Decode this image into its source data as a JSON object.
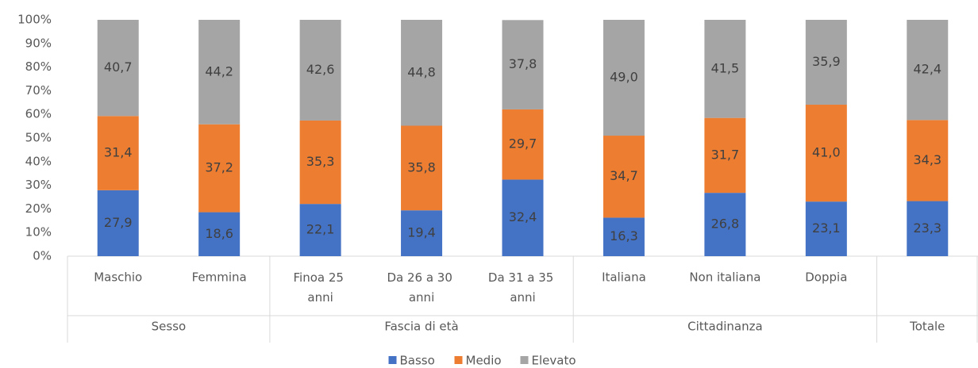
{
  "chart_data": {
    "type": "stacked_bar_100",
    "groups": [
      {
        "name": "Sesso",
        "categories": [
          "Maschio",
          "Femmina"
        ]
      },
      {
        "name": "Fascia di età",
        "categories": [
          "Finoa 25 anni",
          "Da 26 a 30 anni",
          "Da 31 a 35 anni"
        ]
      },
      {
        "name": "Cittadinanza",
        "categories": [
          "Italiana",
          "Non italiana",
          "Doppia"
        ]
      },
      {
        "name": "Totale",
        "categories": [
          null
        ]
      }
    ],
    "series": [
      {
        "name": "Basso",
        "color": "#4472c4",
        "values": [
          27.9,
          18.6,
          22.1,
          19.4,
          32.4,
          16.3,
          26.8,
          23.1,
          23.3
        ],
        "value_labels": [
          "27,9",
          "18,6",
          "22,1",
          "19,4",
          "32,4",
          "16,3",
          "26,8",
          "23,1",
          "23,3"
        ]
      },
      {
        "name": "Medio",
        "color": "#ed7d31",
        "values": [
          31.4,
          37.2,
          35.3,
          35.8,
          29.7,
          34.7,
          31.7,
          41.0,
          34.3
        ],
        "value_labels": [
          "31,4",
          "37,2",
          "35,3",
          "35,8",
          "29,7",
          "34,7",
          "31,7",
          "41,0",
          "34,3"
        ]
      },
      {
        "name": "Elevato",
        "color": "#a5a5a5",
        "values": [
          40.7,
          44.2,
          42.6,
          44.8,
          37.8,
          49.0,
          41.5,
          35.9,
          42.4
        ],
        "value_labels": [
          "40,7",
          "44,2",
          "42,6",
          "44,8",
          "37,8",
          "49,0",
          "41,5",
          "35,9",
          "42,4"
        ]
      }
    ],
    "ylim": [
      0,
      100
    ],
    "yticks": [
      {
        "value": 0,
        "label": "0%"
      },
      {
        "value": 10,
        "label": "10%"
      },
      {
        "value": 20,
        "label": "20%"
      },
      {
        "value": 30,
        "label": "30%"
      },
      {
        "value": 40,
        "label": "40%"
      },
      {
        "value": 50,
        "label": "50%"
      },
      {
        "value": 60,
        "label": "60%"
      },
      {
        "value": 70,
        "label": "70%"
      },
      {
        "value": 80,
        "label": "80%"
      },
      {
        "value": 90,
        "label": "90%"
      },
      {
        "value": 100,
        "label": "100%"
      }
    ],
    "legend": "bottom"
  }
}
